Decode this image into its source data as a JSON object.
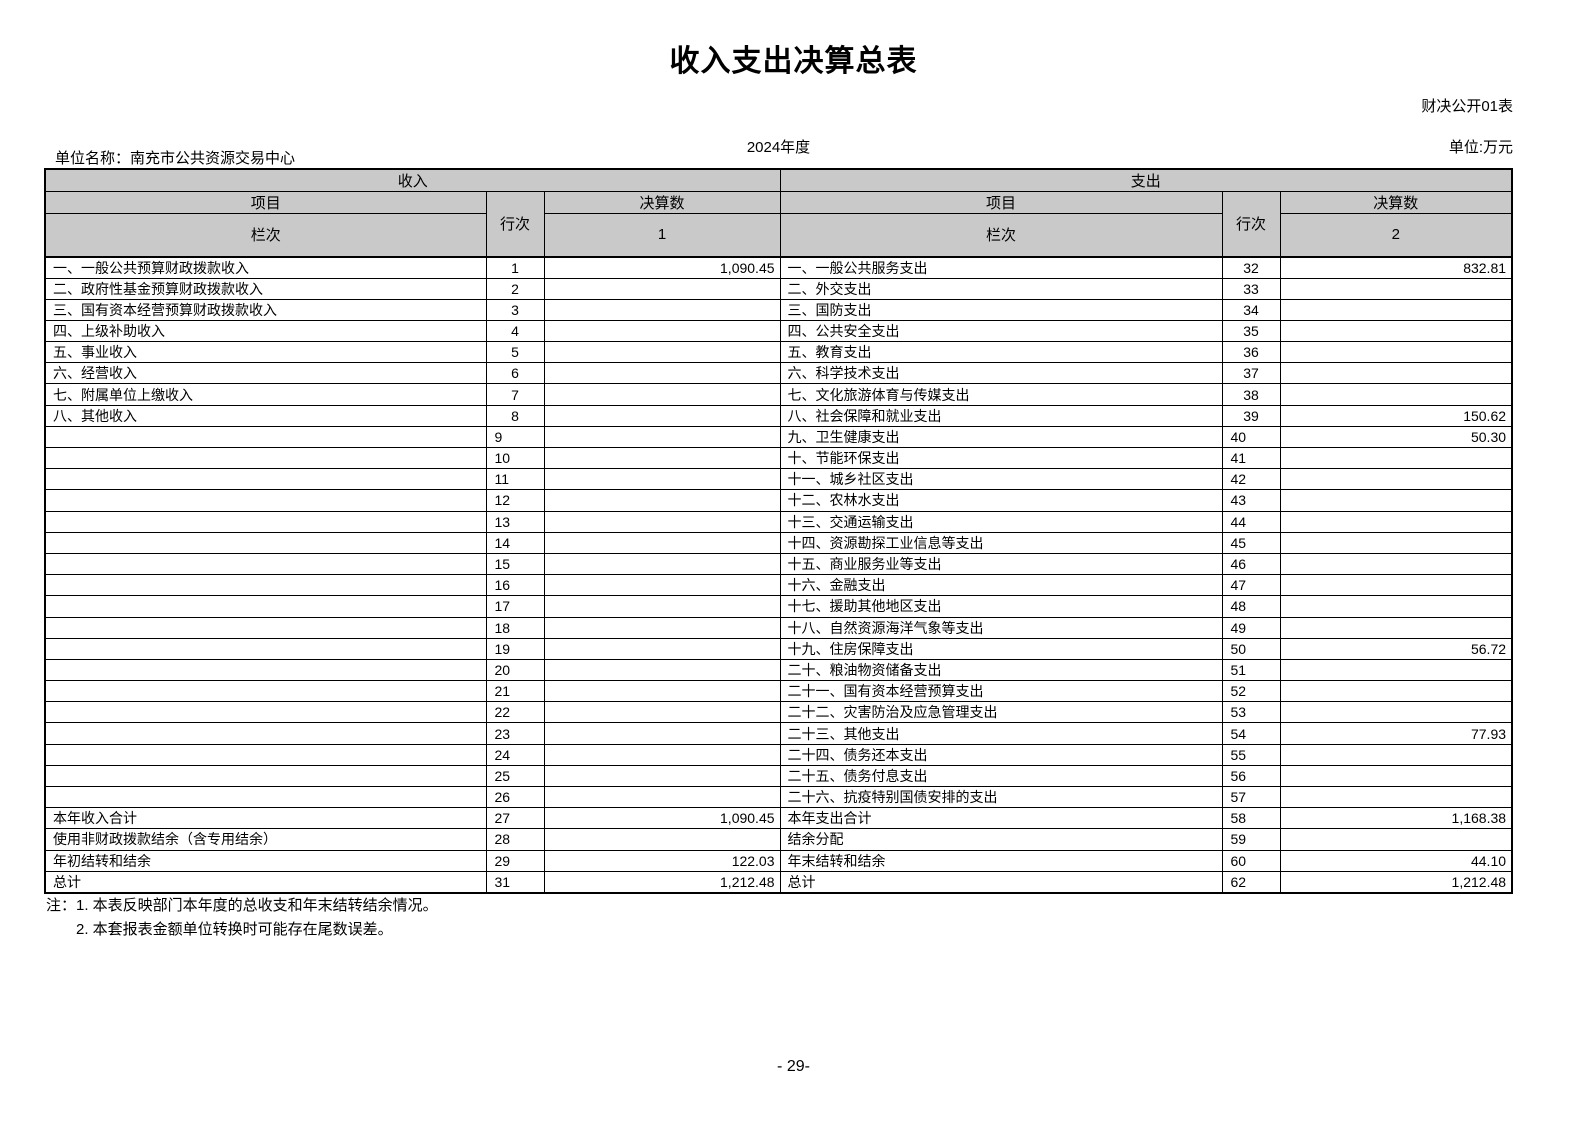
{
  "page": {
    "title": "收入支出决算总表",
    "table_code": "财决公开01表",
    "unit_name": "单位名称：南充市公共资源交易中心",
    "year": "2024年度",
    "unit_label": "单位:万元",
    "page_number": "- 29-"
  },
  "table": {
    "income_header": "收入",
    "expense_header": "支出",
    "col_item": "项目",
    "col_line": "行次",
    "col_amount": "决算数",
    "col_index_label": "栏次",
    "income_col_index": "1",
    "expense_col_index": "2",
    "rows": [
      {
        "income_item": "一、一般公共预算财政拨款收入",
        "income_line": "1",
        "income_value": "1,090.45",
        "expense_item": "一、一般公共服务支出",
        "expense_line": "32",
        "expense_value": "832.81"
      },
      {
        "income_item": "二、政府性基金预算财政拨款收入",
        "income_line": "2",
        "income_value": "",
        "expense_item": "二、外交支出",
        "expense_line": "33",
        "expense_value": ""
      },
      {
        "income_item": "三、国有资本经营预算财政拨款收入",
        "income_line": "3",
        "income_value": "",
        "expense_item": "三、国防支出",
        "expense_line": "34",
        "expense_value": ""
      },
      {
        "income_item": "四、上级补助收入",
        "income_line": "4",
        "income_value": "",
        "expense_item": "四、公共安全支出",
        "expense_line": "35",
        "expense_value": ""
      },
      {
        "income_item": "五、事业收入",
        "income_line": "5",
        "income_value": "",
        "expense_item": "五、教育支出",
        "expense_line": "36",
        "expense_value": ""
      },
      {
        "income_item": "六、经营收入",
        "income_line": "6",
        "income_value": "",
        "expense_item": "六、科学技术支出",
        "expense_line": "37",
        "expense_value": ""
      },
      {
        "income_item": "七、附属单位上缴收入",
        "income_line": "7",
        "income_value": "",
        "expense_item": "七、文化旅游体育与传媒支出",
        "expense_line": "38",
        "expense_value": ""
      },
      {
        "income_item": "八、其他收入",
        "income_line": "8",
        "income_value": "",
        "expense_item": "八、社会保障和就业支出",
        "expense_line": "39",
        "expense_value": "150.62"
      },
      {
        "income_item": "",
        "income_line": "9",
        "income_value": "",
        "expense_item": "九、卫生健康支出",
        "expense_line": "40",
        "expense_value": "50.30"
      },
      {
        "income_item": "",
        "income_line": "10",
        "income_value": "",
        "expense_item": "十、节能环保支出",
        "expense_line": "41",
        "expense_value": ""
      },
      {
        "income_item": "",
        "income_line": "11",
        "income_value": "",
        "expense_item": "十一、城乡社区支出",
        "expense_line": "42",
        "expense_value": ""
      },
      {
        "income_item": "",
        "income_line": "12",
        "income_value": "",
        "expense_item": "十二、农林水支出",
        "expense_line": "43",
        "expense_value": ""
      },
      {
        "income_item": "",
        "income_line": "13",
        "income_value": "",
        "expense_item": "十三、交通运输支出",
        "expense_line": "44",
        "expense_value": ""
      },
      {
        "income_item": "",
        "income_line": "14",
        "income_value": "",
        "expense_item": "十四、资源勘探工业信息等支出",
        "expense_line": "45",
        "expense_value": ""
      },
      {
        "income_item": "",
        "income_line": "15",
        "income_value": "",
        "expense_item": "十五、商业服务业等支出",
        "expense_line": "46",
        "expense_value": ""
      },
      {
        "income_item": "",
        "income_line": "16",
        "income_value": "",
        "expense_item": "十六、金融支出",
        "expense_line": "47",
        "expense_value": ""
      },
      {
        "income_item": "",
        "income_line": "17",
        "income_value": "",
        "expense_item": "十七、援助其他地区支出",
        "expense_line": "48",
        "expense_value": ""
      },
      {
        "income_item": "",
        "income_line": "18",
        "income_value": "",
        "expense_item": "十八、自然资源海洋气象等支出",
        "expense_line": "49",
        "expense_value": ""
      },
      {
        "income_item": "",
        "income_line": "19",
        "income_value": "",
        "expense_item": "十九、住房保障支出",
        "expense_line": "50",
        "expense_value": "56.72"
      },
      {
        "income_item": "",
        "income_line": "20",
        "income_value": "",
        "expense_item": "二十、粮油物资储备支出",
        "expense_line": "51",
        "expense_value": ""
      },
      {
        "income_item": "",
        "income_line": "21",
        "income_value": "",
        "expense_item": "二十一、国有资本经营预算支出",
        "expense_line": "52",
        "expense_value": ""
      },
      {
        "income_item": "",
        "income_line": "22",
        "income_value": "",
        "expense_item": "二十二、灾害防治及应急管理支出",
        "expense_line": "53",
        "expense_value": ""
      },
      {
        "income_item": "",
        "income_line": "23",
        "income_value": "",
        "expense_item": "二十三、其他支出",
        "expense_line": "54",
        "expense_value": "77.93"
      },
      {
        "income_item": "",
        "income_line": "24",
        "income_value": "",
        "expense_item": "二十四、债务还本支出",
        "expense_line": "55",
        "expense_value": ""
      },
      {
        "income_item": "",
        "income_line": "25",
        "income_value": "",
        "expense_item": "二十五、债务付息支出",
        "expense_line": "56",
        "expense_value": ""
      },
      {
        "income_item": "",
        "income_line": "26",
        "income_value": "",
        "expense_item": "二十六、抗疫特别国债安排的支出",
        "expense_line": "57",
        "expense_value": ""
      },
      {
        "income_item": "本年收入合计",
        "income_line": "27",
        "income_value": "1,090.45",
        "expense_item": "本年支出合计",
        "expense_line": "58",
        "expense_value": "1,168.38"
      },
      {
        "income_item": "使用非财政拨款结余（含专用结余）",
        "income_line": "28",
        "income_value": "",
        "expense_item": "结余分配",
        "expense_line": "59",
        "expense_value": ""
      },
      {
        "income_item": "年初结转和结余",
        "income_line": "29",
        "income_value": "122.03",
        "expense_item": "年末结转和结余",
        "expense_line": "60",
        "expense_value": "44.10"
      },
      {
        "income_item": "总计",
        "income_line": "31",
        "income_value": "1,212.48",
        "expense_item": "总计",
        "expense_line": "62",
        "expense_value": "1,212.48"
      }
    ]
  },
  "notes": {
    "line1": "注：1. 本表反映部门本年度的总收支和年末结转结余情况。",
    "line2": "2. 本套报表金额单位转换时可能存在尾数误差。"
  }
}
